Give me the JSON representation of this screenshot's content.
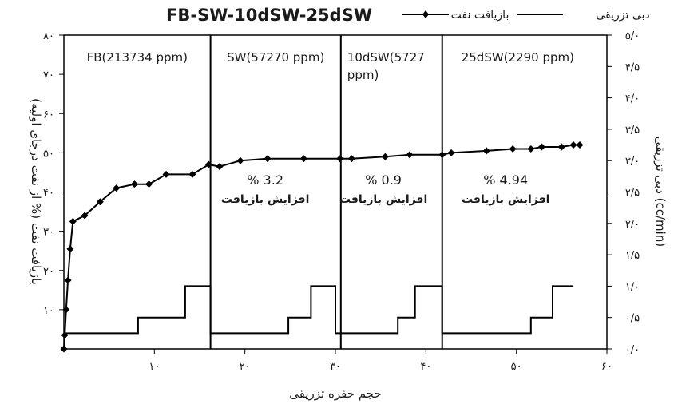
{
  "chart_data": {
    "type": "line",
    "title": "FB-SW-10dSW-25dSW",
    "xlabel": "حجم حفره تزریقی",
    "ylabel_left": "بازیافت نفت (% از نفت درجای اولیه)",
    "ylabel_right": "دبی تزریقی (cc/min)",
    "xlim": [
      0,
      60
    ],
    "ylim_left": [
      0,
      80
    ],
    "ylim_right": [
      0,
      5
    ],
    "x_ticks": [
      {
        "value": 10,
        "label": "۱۰"
      },
      {
        "value": 20,
        "label": "۲۰"
      },
      {
        "value": 30,
        "label": "۳۰"
      },
      {
        "value": 40,
        "label": "۴۰"
      },
      {
        "value": 50,
        "label": "۵۰"
      },
      {
        "value": 60,
        "label": "۶۰"
      }
    ],
    "y_left_ticks": [
      {
        "value": 10,
        "label": "۱۰"
      },
      {
        "value": 20,
        "label": "۲۰"
      },
      {
        "value": 30,
        "label": "۳۰"
      },
      {
        "value": 40,
        "label": "۴۰"
      },
      {
        "value": 50,
        "label": "۵۰"
      },
      {
        "value": 60,
        "label": "۶۰"
      },
      {
        "value": 70,
        "label": "۷۰"
      },
      {
        "value": 80,
        "label": "۸۰"
      }
    ],
    "y_right_ticks": [
      {
        "value": 0,
        "label": "۰/۰"
      },
      {
        "value": 0.5,
        "label": "۰/۵"
      },
      {
        "value": 1.0,
        "label": "۱/۰"
      },
      {
        "value": 1.5,
        "label": "۱/۵"
      },
      {
        "value": 2.0,
        "label": "۲/۰"
      },
      {
        "value": 2.5,
        "label": "۲/۵"
      },
      {
        "value": 3.0,
        "label": "۳/۰"
      },
      {
        "value": 3.5,
        "label": "۳/۵"
      },
      {
        "value": 4.0,
        "label": "۴/۰"
      },
      {
        "value": 4.5,
        "label": "۴/۵"
      },
      {
        "value": 5.0,
        "label": "۵/۰"
      }
    ],
    "legend": [
      {
        "name": "بازیافت نفت",
        "marker": "diamond"
      },
      {
        "name": "دبی تزریقی",
        "marker": "none"
      }
    ],
    "series": [
      {
        "name": "بازیافت نفت",
        "axis": "left",
        "color": "#000000",
        "x": [
          0.0,
          0.1,
          0.25,
          0.45,
          0.7,
          1.0,
          2.3,
          4.0,
          5.8,
          7.8,
          9.4,
          11.3,
          14.2,
          16.0,
          17.2,
          19.5,
          22.5,
          26.5,
          30.5,
          31.8,
          35.5,
          38.2,
          41.8,
          42.8,
          46.7,
          49.6,
          51.6,
          52.8,
          55.0,
          56.3,
          57.0
        ],
        "y": [
          0.0,
          3.5,
          10.0,
          17.5,
          25.5,
          32.5,
          34.0,
          37.5,
          41.0,
          42.0,
          42.0,
          44.5,
          44.5,
          47.0,
          46.5,
          48.0,
          48.5,
          48.5,
          48.5,
          48.5,
          49.0,
          49.5,
          49.5,
          50.0,
          50.5,
          51.0,
          51.0,
          51.5,
          51.5,
          52.0,
          52.0
        ]
      },
      {
        "name": "دبی تزریقی",
        "axis": "right",
        "color": "#000000",
        "x": [
          0.0,
          8.2,
          8.2,
          13.4,
          13.4,
          16.2,
          16.2,
          16.2,
          24.8,
          24.8,
          27.3,
          27.3,
          30.0,
          30.0,
          30.6,
          36.9,
          36.9,
          38.8,
          38.8,
          41.8,
          41.8,
          42.9,
          51.6,
          51.6,
          54.0,
          54.0,
          56.3
        ],
        "y": [
          0.25,
          0.25,
          0.5,
          0.5,
          1.0,
          1.0,
          0.25,
          0.25,
          0.25,
          0.5,
          0.5,
          1.0,
          1.0,
          0.25,
          0.25,
          0.25,
          0.5,
          0.5,
          1.0,
          1.0,
          0.25,
          0.25,
          0.25,
          0.5,
          0.5,
          1.0,
          1.0
        ]
      }
    ],
    "regions": [
      {
        "x_start": 0,
        "x_end": 16.2,
        "label": "FB(213734 ppm)"
      },
      {
        "x_start": 16.2,
        "x_end": 30.6,
        "label": "SW(57270 ppm)",
        "annotation_value": "% 3.2",
        "annotation_text": "افزایش بازیافت"
      },
      {
        "x_start": 30.6,
        "x_end": 41.8,
        "label_line1": "10dSW(5727",
        "label_line2": "ppm)",
        "annotation_value": "% 0.9",
        "annotation_text": "افزایش بازیافت"
      },
      {
        "x_start": 41.8,
        "x_end": 58.5,
        "label": "25dSW(2290 ppm)",
        "annotation_value": "% 4.94",
        "annotation_text": "افزایش بازیافت"
      }
    ],
    "grid": false,
    "legend_position": "top-right"
  }
}
